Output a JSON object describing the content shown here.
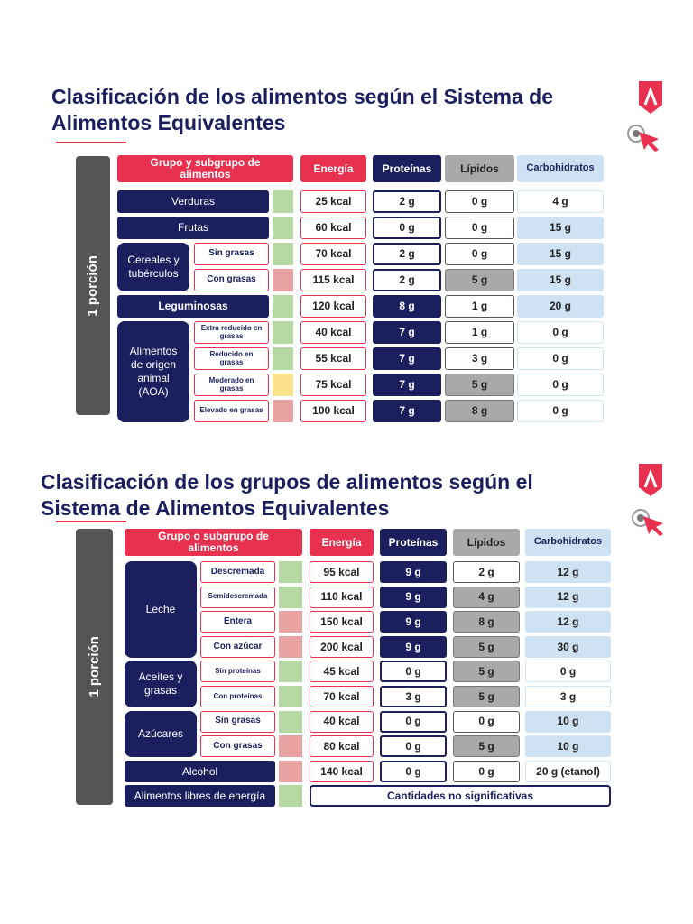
{
  "sections": [
    {
      "title": "Clasificación de los alimentos según el Sistema de Alimentos Equivalentes",
      "side_label": "1 porción",
      "headers": {
        "group": "Grupo y subgrupo de alimentos",
        "energy": "Energía",
        "protein": "Proteínas",
        "lipids": "Lípidos",
        "carbs": "Carbohidratos"
      },
      "groups": [
        {
          "name": "Verduras",
          "rows": [
            {
              "energy": "25 kcal",
              "protein": "2 g",
              "lipids": "0 g",
              "carbs": "4 g",
              "indicator": "#b6d9a4",
              "shaded": []
            }
          ]
        },
        {
          "name": "Frutas",
          "rows": [
            {
              "energy": "60 kcal",
              "protein": "0 g",
              "lipids": "0 g",
              "carbs": "15 g",
              "indicator": "#b6d9a4",
              "shaded": [
                "carbs"
              ]
            }
          ]
        },
        {
          "name": "Cereales y tubérculos",
          "rows": [
            {
              "name": "Sin grasas",
              "energy": "70 kcal",
              "protein": "2 g",
              "lipids": "0 g",
              "carbs": "15 g",
              "indicator": "#b6d9a4",
              "shaded": [
                "carbs"
              ]
            },
            {
              "name": "Con grasas",
              "energy": "115 kcal",
              "protein": "2 g",
              "lipids": "5 g",
              "carbs": "15 g",
              "indicator": "#e9a3a3",
              "shaded": [
                "lipids",
                "carbs"
              ]
            }
          ]
        },
        {
          "name": "Leguminosas",
          "rows": [
            {
              "energy": "120 kcal",
              "protein": "8 g",
              "lipids": "1 g",
              "carbs": "20 g",
              "indicator": "#b6d9a4",
              "shaded": [
                "protein",
                "carbs"
              ]
            }
          ]
        },
        {
          "name": "Alimentos de origen animal (AOA)",
          "rows": [
            {
              "name": "Extra reducido en grasas",
              "energy": "40 kcal",
              "protein": "7 g",
              "lipids": "1 g",
              "carbs": "0 g",
              "indicator": "#b6d9a4",
              "shaded": [
                "protein"
              ]
            },
            {
              "name": "Reducido en grasas",
              "energy": "55 kcal",
              "protein": "7 g",
              "lipids": "3 g",
              "carbs": "0 g",
              "indicator": "#b6d9a4",
              "shaded": [
                "protein"
              ]
            },
            {
              "name": "Moderado en grasas",
              "energy": "75 kcal",
              "protein": "7 g",
              "lipids": "5 g",
              "carbs": "0 g",
              "indicator": "#fde28c",
              "shaded": [
                "protein",
                "lipids"
              ]
            },
            {
              "name": "Elevado en grasas",
              "energy": "100 kcal",
              "protein": "7 g",
              "lipids": "8 g",
              "carbs": "0 g",
              "indicator": "#e9a3a3",
              "shaded": [
                "protein",
                "lipids"
              ]
            }
          ]
        }
      ]
    },
    {
      "title": "Clasificación de los grupos de alimentos según el Sistema de Alimentos Equivalentes",
      "side_label": "1 porción",
      "headers": {
        "group": "Grupo o subgrupo de alimentos",
        "energy": "Energía",
        "protein": "Proteínas",
        "lipids": "Lípidos",
        "carbs": "Carbohidratos"
      },
      "groups": [
        {
          "name": "Leche",
          "rows": [
            {
              "name": "Descremada",
              "energy": "95 kcal",
              "protein": "9 g",
              "lipids": "2 g",
              "carbs": "12 g",
              "indicator": "#b6d9a4",
              "shaded": [
                "protein",
                "carbs"
              ]
            },
            {
              "name": "Semidescremada",
              "energy": "110 kcal",
              "protein": "9 g",
              "lipids": "4 g",
              "carbs": "12 g",
              "indicator": "#b6d9a4",
              "shaded": [
                "protein",
                "lipids",
                "carbs"
              ]
            },
            {
              "name": "Entera",
              "energy": "150 kcal",
              "protein": "9 g",
              "lipids": "8 g",
              "carbs": "12 g",
              "indicator": "#e9a3a3",
              "shaded": [
                "protein",
                "lipids",
                "carbs"
              ]
            },
            {
              "name": "Con azúcar",
              "energy": "200 kcal",
              "protein": "9 g",
              "lipids": "5 g",
              "carbs": "30 g",
              "indicator": "#e9a3a3",
              "shaded": [
                "protein",
                "lipids",
                "carbs"
              ]
            }
          ]
        },
        {
          "name": "Aceites y grasas",
          "rows": [
            {
              "name": "Sin proteínas",
              "energy": "45 kcal",
              "protein": "0 g",
              "lipids": "5 g",
              "carbs": "0 g",
              "indicator": "#b6d9a4",
              "shaded": [
                "lipids"
              ]
            },
            {
              "name": "Con proteínas",
              "energy": "70 kcal",
              "protein": "3 g",
              "lipids": "5 g",
              "carbs": "3 g",
              "indicator": "#b6d9a4",
              "shaded": [
                "lipids"
              ]
            }
          ]
        },
        {
          "name": "Azúcares",
          "rows": [
            {
              "name": "Sin grasas",
              "energy": "40 kcal",
              "protein": "0 g",
              "lipids": "0 g",
              "carbs": "10 g",
              "indicator": "#b6d9a4",
              "shaded": [
                "carbs"
              ]
            },
            {
              "name": "Con grasas",
              "energy": "80 kcal",
              "protein": "0 g",
              "lipids": "5 g",
              "carbs": "10 g",
              "indicator": "#e9a3a3",
              "shaded": [
                "lipids",
                "carbs"
              ]
            }
          ]
        },
        {
          "name": "Alcohol",
          "rows": [
            {
              "energy": "140 kcal",
              "protein": "0 g",
              "lipids": "0 g",
              "carbs": "20 g (etanol)",
              "indicator": "#e9a3a3",
              "shaded": []
            }
          ]
        },
        {
          "name": "Alimentos libres de energía",
          "note": "Cantidades no significativas",
          "indicator": "#b6d9a4"
        }
      ]
    }
  ]
}
